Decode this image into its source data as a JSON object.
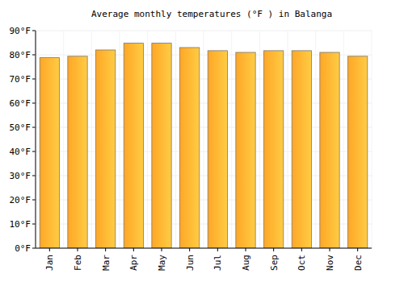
{
  "chart_data": {
    "type": "bar",
    "title": "Average monthly temperatures (°F ) in Balanga",
    "categories": [
      "Jan",
      "Feb",
      "Mar",
      "Apr",
      "May",
      "Jun",
      "Jul",
      "Aug",
      "Sep",
      "Oct",
      "Nov",
      "Dec"
    ],
    "values": [
      78.8,
      79.4,
      82,
      84.8,
      84.8,
      83,
      81.7,
      81,
      81.7,
      81.7,
      81,
      79.4
    ],
    "color": "#ffa726",
    "ylim": [
      0,
      90
    ],
    "yticks": [
      {
        "value": 0,
        "label": "0°F"
      },
      {
        "value": 10,
        "label": "10°F"
      },
      {
        "value": 20,
        "label": "20°F"
      },
      {
        "value": 30,
        "label": "30°F"
      },
      {
        "value": 40,
        "label": "40°F"
      },
      {
        "value": 50,
        "label": "50°F"
      },
      {
        "value": 60,
        "label": "60°F"
      },
      {
        "value": 70,
        "label": "70°F"
      },
      {
        "value": 80,
        "label": "80°F"
      },
      {
        "value": 90,
        "label": "90°F"
      }
    ],
    "grid": true
  }
}
